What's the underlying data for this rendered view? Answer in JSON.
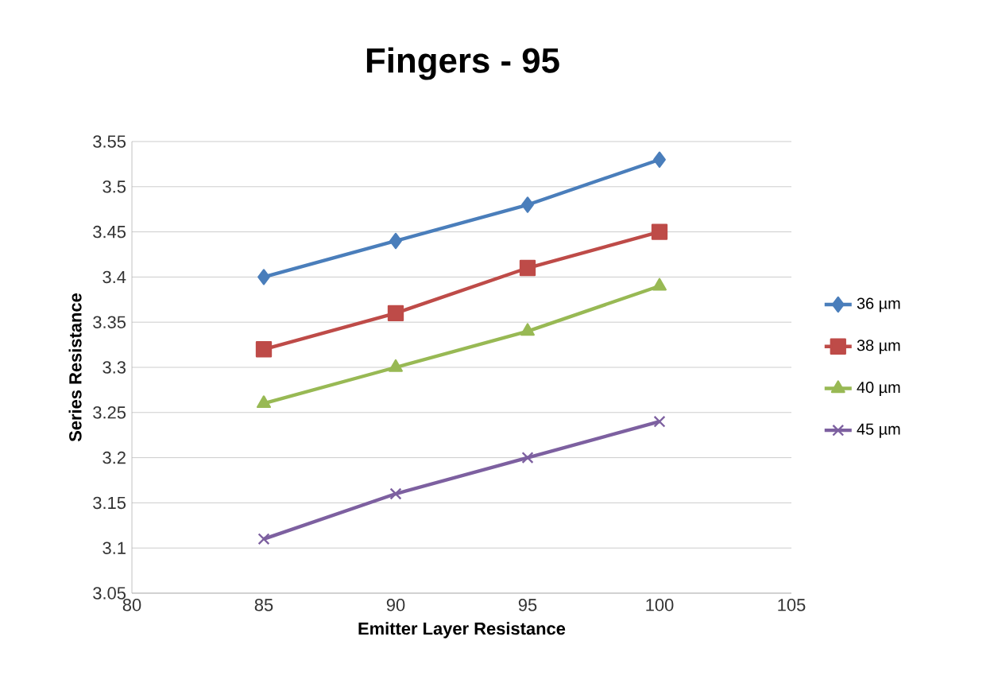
{
  "chart_data": {
    "type": "line",
    "title": "Fingers - 95",
    "xlabel": "Emitter Layer Resistance",
    "ylabel": "Series Resistance",
    "x": [
      85,
      90,
      95,
      100
    ],
    "series": [
      {
        "name": "36 µm",
        "color": "#4a7ebb",
        "marker": "diamond",
        "values": [
          3.4,
          3.44,
          3.48,
          3.53
        ]
      },
      {
        "name": "38 µm",
        "color": "#be4b48",
        "marker": "square",
        "values": [
          3.32,
          3.36,
          3.41,
          3.45
        ]
      },
      {
        "name": "40 µm",
        "color": "#98b954",
        "marker": "triangle",
        "values": [
          3.26,
          3.3,
          3.34,
          3.39
        ]
      },
      {
        "name": "45 µm",
        "color": "#7d60a0",
        "marker": "cross",
        "values": [
          3.11,
          3.16,
          3.2,
          3.24
        ]
      }
    ],
    "xlim": [
      80,
      105
    ],
    "xticks": [
      80,
      85,
      90,
      95,
      100,
      105
    ],
    "ylim": [
      3.05,
      3.55
    ],
    "yticks": [
      3.05,
      3.1,
      3.15,
      3.2,
      3.25,
      3.3,
      3.35,
      3.4,
      3.45,
      3.5,
      3.55
    ],
    "grid": "y",
    "legend": "right",
    "line_style": "solid"
  }
}
